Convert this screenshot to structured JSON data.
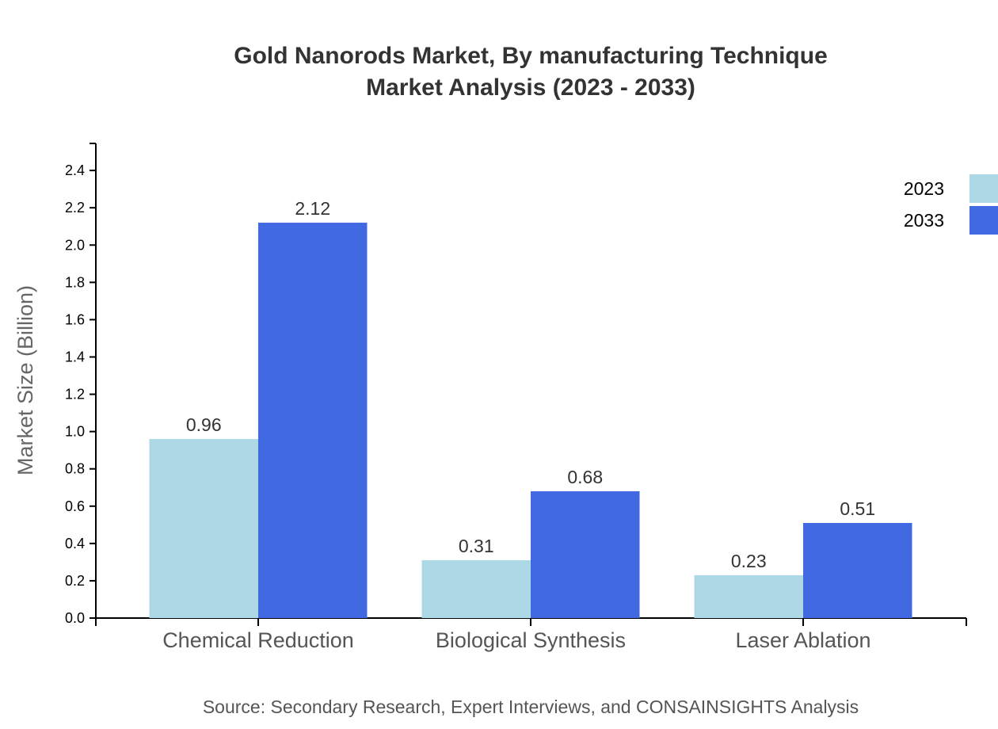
{
  "chart_data": {
    "type": "bar",
    "title": [
      "Gold Nanorods Market, By manufacturing Technique",
      "Market Analysis (2023 - 2033)"
    ],
    "xlabel": "",
    "ylabel": "Market Size (Billion)",
    "categories": [
      "Chemical Reduction",
      "Biological Synthesis",
      "Laser Ablation"
    ],
    "series": [
      {
        "name": "2023",
        "values": [
          0.96,
          0.31,
          0.23
        ],
        "color": "#add8e6"
      },
      {
        "name": "2033",
        "values": [
          2.12,
          0.68,
          0.51
        ],
        "color": "#4169e1"
      }
    ],
    "ylim": [
      0,
      2.545
    ],
    "yticks": [
      "0.0",
      "0.2",
      "0.4",
      "0.6",
      "0.8",
      "1.0",
      "1.2",
      "1.4",
      "1.6",
      "1.8",
      "2.0",
      "2.2",
      "2.4"
    ],
    "grid": false,
    "legend": "top-right",
    "source": "Source: Secondary Research, Expert Interviews, and CONSAINSIGHTS Analysis"
  }
}
